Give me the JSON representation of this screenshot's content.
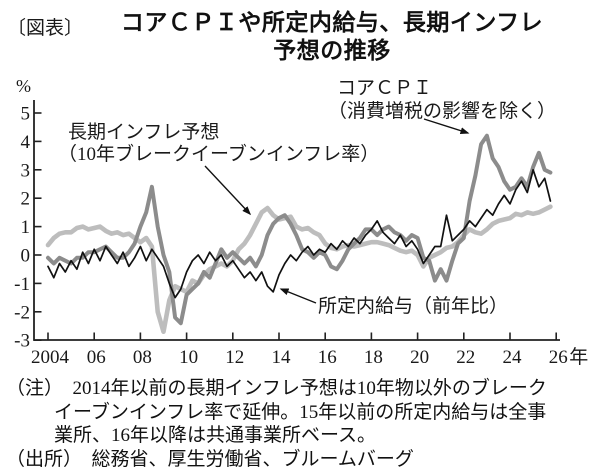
{
  "header": {
    "tag": "〔図表〕",
    "title_line1": "コアＣＰＩや所定内給与、長期インフレ",
    "title_line2": "予想の推移"
  },
  "chart_data": {
    "type": "line",
    "title": "コアＣＰＩや所定内給与、長期インフレ予想の推移",
    "unit_label": "%",
    "x_axis_suffix": "年",
    "grid": false,
    "legend": "none (arrow annotations)",
    "axis_color": "#222222",
    "ylim": [
      -3,
      5
    ],
    "xlim": [
      2003.4,
      2026.3
    ],
    "y_ticks": [
      5,
      4,
      3,
      2,
      1,
      0,
      -1,
      -2,
      -3
    ],
    "x_ticks": [
      "2004",
      "06",
      "08",
      "10",
      "12",
      "14",
      "16",
      "18",
      "20",
      "22",
      "24",
      "26"
    ],
    "x_tick_years": [
      2004,
      2006,
      2008,
      2010,
      2012,
      2014,
      2016,
      2018,
      2020,
      2022,
      2024,
      2026
    ],
    "series": [
      {
        "name": "長期インフレ予想（10年ブレークイーブンインフレ率）",
        "color": "#bdbdbd",
        "width": 4.6,
        "start": 2004.0,
        "step": 0.25,
        "values": [
          0.35,
          0.6,
          0.75,
          0.8,
          0.8,
          0.95,
          1.0,
          0.9,
          0.95,
          1.0,
          0.85,
          0.75,
          0.8,
          0.7,
          0.75,
          0.6,
          0.45,
          0.6,
          0.3,
          -2.0,
          -2.7,
          -1.6,
          -1.1,
          -1.2,
          -1.3,
          -0.9,
          -1.0,
          -0.7,
          -0.5,
          -0.4,
          -0.3,
          -0.4,
          -0.2,
          0.2,
          0.4,
          0.7,
          1.1,
          1.5,
          1.65,
          1.4,
          1.25,
          1.3,
          1.35,
          1.0,
          0.9,
          0.95,
          0.8,
          0.7,
          0.4,
          0.25,
          0.2,
          0.3,
          0.35,
          0.3,
          0.35,
          0.4,
          0.45,
          0.45,
          0.4,
          0.35,
          0.25,
          0.15,
          0.1,
          0.15,
          0.0,
          -0.4,
          -0.1,
          0.0,
          0.1,
          0.25,
          0.3,
          0.45,
          0.7,
          0.9,
          0.8,
          0.75,
          0.9,
          1.1,
          1.2,
          1.25,
          1.3,
          1.45,
          1.4,
          1.5,
          1.45,
          1.5,
          1.6,
          1.7
        ]
      },
      {
        "name": "コアＣＰＩ（消費増税の影響を除く）",
        "color": "#8c8c8c",
        "width": 4.0,
        "start": 2004.0,
        "step": 0.25,
        "values": [
          -0.1,
          -0.3,
          -0.1,
          -0.2,
          -0.3,
          -0.1,
          -0.1,
          0.1,
          0.1,
          0.2,
          0.3,
          0.1,
          -0.1,
          -0.1,
          0.1,
          0.4,
          1.0,
          1.5,
          2.4,
          1.0,
          0.0,
          -0.6,
          -2.2,
          -2.4,
          -1.4,
          -1.2,
          -1.0,
          -0.6,
          -0.8,
          -0.3,
          0.2,
          -0.1,
          0.1,
          -0.1,
          -0.3,
          -0.1,
          -0.4,
          0.0,
          0.7,
          1.1,
          1.3,
          1.4,
          1.1,
          0.7,
          0.2,
          0.1,
          -0.1,
          0.1,
          0.0,
          -0.4,
          -0.5,
          -0.2,
          0.2,
          0.4,
          0.6,
          0.9,
          0.9,
          0.7,
          0.9,
          1.0,
          0.8,
          0.7,
          0.5,
          0.7,
          0.6,
          -0.1,
          -0.2,
          -0.9,
          -0.5,
          -0.9,
          -0.2,
          0.4,
          0.6,
          1.9,
          2.8,
          3.9,
          4.2,
          3.4,
          3.1,
          2.6,
          2.3,
          2.4,
          2.7,
          2.4,
          3.1,
          3.6,
          3.0,
          2.9
        ]
      },
      {
        "name": "所定内給与（前年比）",
        "color": "#111111",
        "width": 1.7,
        "start": 2004.0,
        "step": 0.25,
        "values": [
          -0.4,
          -0.8,
          -0.3,
          -0.6,
          -0.2,
          -0.5,
          0.1,
          -0.3,
          0.2,
          -0.2,
          0.3,
          0.0,
          -0.3,
          0.1,
          -0.4,
          -0.1,
          0.3,
          -0.2,
          0.2,
          -0.1,
          -0.4,
          -1.0,
          -1.5,
          -1.2,
          -0.6,
          -0.2,
          0.0,
          -0.3,
          0.1,
          -0.2,
          0.0,
          -0.4,
          -0.2,
          -0.5,
          -0.8,
          -0.6,
          -0.9,
          -0.6,
          -1.1,
          -1.3,
          -0.7,
          -0.3,
          0.0,
          -0.2,
          0.1,
          0.3,
          0.0,
          0.2,
          0.1,
          0.4,
          0.2,
          0.5,
          0.3,
          0.6,
          0.4,
          0.7,
          0.9,
          1.2,
          0.8,
          0.6,
          0.4,
          0.7,
          0.3,
          0.5,
          0.2,
          -0.3,
          0.0,
          0.3,
          0.3,
          1.4,
          0.5,
          0.7,
          0.9,
          1.2,
          1.0,
          1.3,
          1.6,
          1.4,
          1.8,
          2.1,
          1.8,
          2.3,
          2.6,
          2.2,
          3.0,
          2.4,
          2.7,
          1.9
        ]
      }
    ],
    "annotations": {
      "bei": {
        "line1": "長期インフレ予想",
        "line2": "（10年ブレークイーブンインフレ率）"
      },
      "cpi": {
        "line1": "コアＣＰＩ",
        "line2": "（消費増税の影響を除く）"
      },
      "wage": {
        "line1": "所定内給与（前年比）"
      }
    }
  },
  "notes": {
    "note_lines": [
      "（注）　2014年以前の長期インフレ予想は10年物以外のブレーク",
      "イーブンインフレ率で延伸。15年以前の所定内給与は全事",
      "業所、16年以降は共通事業所ベース。"
    ],
    "source_line": "（出所）　総務省、厚生労働省、ブルームバーグ"
  }
}
